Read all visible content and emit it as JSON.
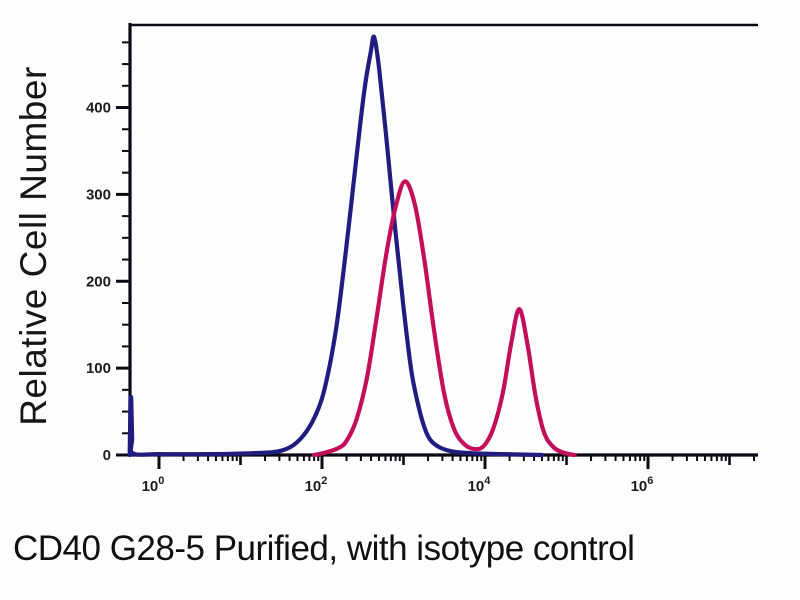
{
  "figure": {
    "caption": "CD40 G28-5 Purified, with isotype control",
    "background_color": "#fdfdfd",
    "axis_color": "#0a0a12",
    "tick_label_color": "#1c1c1c"
  },
  "chart_data": {
    "type": "line",
    "subtype": "flow-cytometry-histogram",
    "title": "CD40 G28-5 Purified, with isotype control",
    "xlabel": "",
    "ylabel": "Relative Cell Number",
    "x_scale": "log",
    "grid": false,
    "legend": "none",
    "x_major_tick_decades": [
      0,
      2,
      4,
      6
    ],
    "x_major_tick_labels": [
      {
        "base": "10",
        "exp": "0"
      },
      {
        "base": "10",
        "exp": "2"
      },
      {
        "base": "10",
        "exp": "4"
      },
      {
        "base": "10",
        "exp": "6"
      }
    ],
    "x_medium_tick_decades": [
      1,
      3,
      5,
      7
    ],
    "x_minor_tick_mantissas": [
      2,
      3,
      4,
      5,
      6,
      7,
      8,
      9
    ],
    "x_range_decades": [
      -0.36,
      7.35
    ],
    "y_ticks": [
      0,
      100,
      200,
      300,
      400
    ],
    "y_tick_labels": [
      "0",
      "100",
      "200",
      "300",
      "400"
    ],
    "y_minor_step": 25,
    "ylim": [
      0,
      495
    ],
    "series": [
      {
        "name": "Isotype control",
        "color": "#211d80",
        "points": [
          [
            -0.36,
            0
          ],
          [
            -0.355,
            30
          ],
          [
            -0.35,
            62
          ],
          [
            -0.345,
            66
          ],
          [
            -0.34,
            62
          ],
          [
            -0.33,
            20
          ],
          [
            -0.32,
            2
          ],
          [
            0,
            1
          ],
          [
            0.6,
            1
          ],
          [
            1.1,
            2
          ],
          [
            1.5,
            5
          ],
          [
            1.75,
            20
          ],
          [
            1.95,
            52
          ],
          [
            2.07,
            92
          ],
          [
            2.18,
            150
          ],
          [
            2.3,
            240
          ],
          [
            2.42,
            340
          ],
          [
            2.52,
            420
          ],
          [
            2.6,
            465
          ],
          [
            2.64,
            481
          ],
          [
            2.7,
            445
          ],
          [
            2.8,
            355
          ],
          [
            2.9,
            258
          ],
          [
            3.0,
            170
          ],
          [
            3.1,
            95
          ],
          [
            3.2,
            50
          ],
          [
            3.3,
            22
          ],
          [
            3.42,
            10
          ],
          [
            3.6,
            4
          ],
          [
            3.85,
            2
          ],
          [
            4.2,
            1
          ],
          [
            4.7,
            0
          ]
        ]
      },
      {
        "name": "CD40 G28-5 Purified",
        "color": "#c30e5c",
        "points": [
          [
            1.9,
            0
          ],
          [
            2.05,
            3
          ],
          [
            2.2,
            8
          ],
          [
            2.3,
            16
          ],
          [
            2.42,
            40
          ],
          [
            2.55,
            88
          ],
          [
            2.67,
            158
          ],
          [
            2.79,
            232
          ],
          [
            2.91,
            288
          ],
          [
            3.02,
            315
          ],
          [
            3.14,
            288
          ],
          [
            3.26,
            222
          ],
          [
            3.38,
            140
          ],
          [
            3.5,
            70
          ],
          [
            3.62,
            30
          ],
          [
            3.74,
            13
          ],
          [
            3.86,
            7
          ],
          [
            3.98,
            10
          ],
          [
            4.1,
            30
          ],
          [
            4.22,
            72
          ],
          [
            4.32,
            128
          ],
          [
            4.42,
            168
          ],
          [
            4.52,
            128
          ],
          [
            4.62,
            68
          ],
          [
            4.72,
            27
          ],
          [
            4.83,
            10
          ],
          [
            4.95,
            3
          ],
          [
            5.1,
            0
          ]
        ]
      }
    ]
  }
}
